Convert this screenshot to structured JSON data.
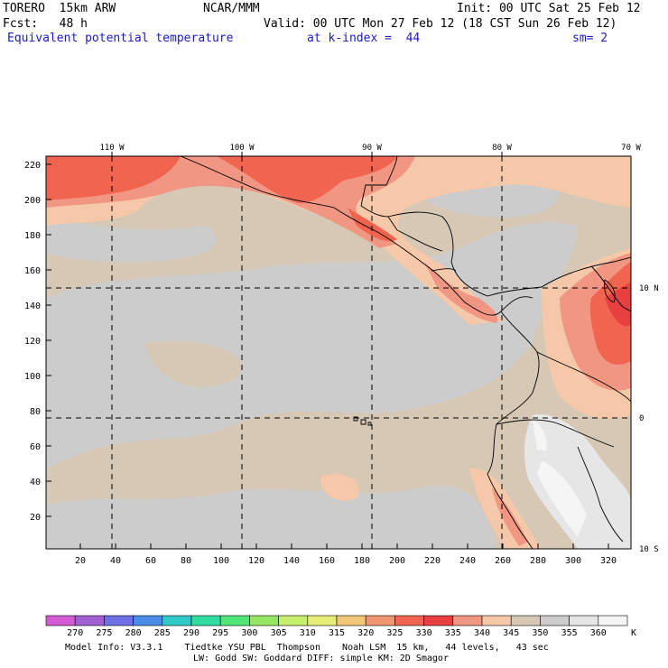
{
  "header": {
    "model": "TORERO  15km ARW",
    "center": "NCAR/MMM",
    "init": "Init: 00 UTC Sat 25 Feb 12",
    "fcst": "Fcst:   48 h",
    "valid": "Valid: 00 UTC Mon 27 Feb 12 (18 CST Sun 26 Feb 12)",
    "field": "Equivalent potential temperature",
    "level": "at k-index =  44",
    "smooth": "sm= 2"
  },
  "axes": {
    "x_ticks": [
      "20",
      "40",
      "60",
      "80",
      "100",
      "120",
      "140",
      "160",
      "180",
      "200",
      "220",
      "240",
      "260",
      "280",
      "300",
      "320"
    ],
    "y_ticks": [
      "220",
      "200",
      "180",
      "160",
      "140",
      "120",
      "100",
      "80",
      "60",
      "40",
      "20"
    ],
    "lon_labels": [
      "110 W",
      "100 W",
      "90 W",
      "80 W",
      "70 W"
    ],
    "lat_labels": [
      "10 N",
      "0",
      "10 S"
    ]
  },
  "colorbar": {
    "labels": [
      "270",
      "275",
      "280",
      "285",
      "290",
      "295",
      "300",
      "305",
      "310",
      "315",
      "320",
      "325",
      "330",
      "335",
      "340",
      "345",
      "350",
      "355",
      "360"
    ],
    "unit": "K",
    "colors": [
      "#d25ad2",
      "#a060d2",
      "#7070e6",
      "#4a8ce6",
      "#30c8c8",
      "#30dca0",
      "#50e678",
      "#96e664",
      "#c8ee6e",
      "#e6ee78",
      "#f0c878",
      "#f09670",
      "#f06450",
      "#e84040",
      "#f09682",
      "#f5c8aa",
      "#d6c8b4",
      "#cccccc",
      "#e6e6e6",
      "#f5f5f5"
    ]
  },
  "footer": {
    "line1": "Model Info: V3.3.1    Tiedtke YSU PBL  Thompson    Noah LSM  15 km,   44 levels,   43 sec",
    "line2": "LW: Godd SW: Goddard DIFF: simple KM: 2D Smagor"
  }
}
